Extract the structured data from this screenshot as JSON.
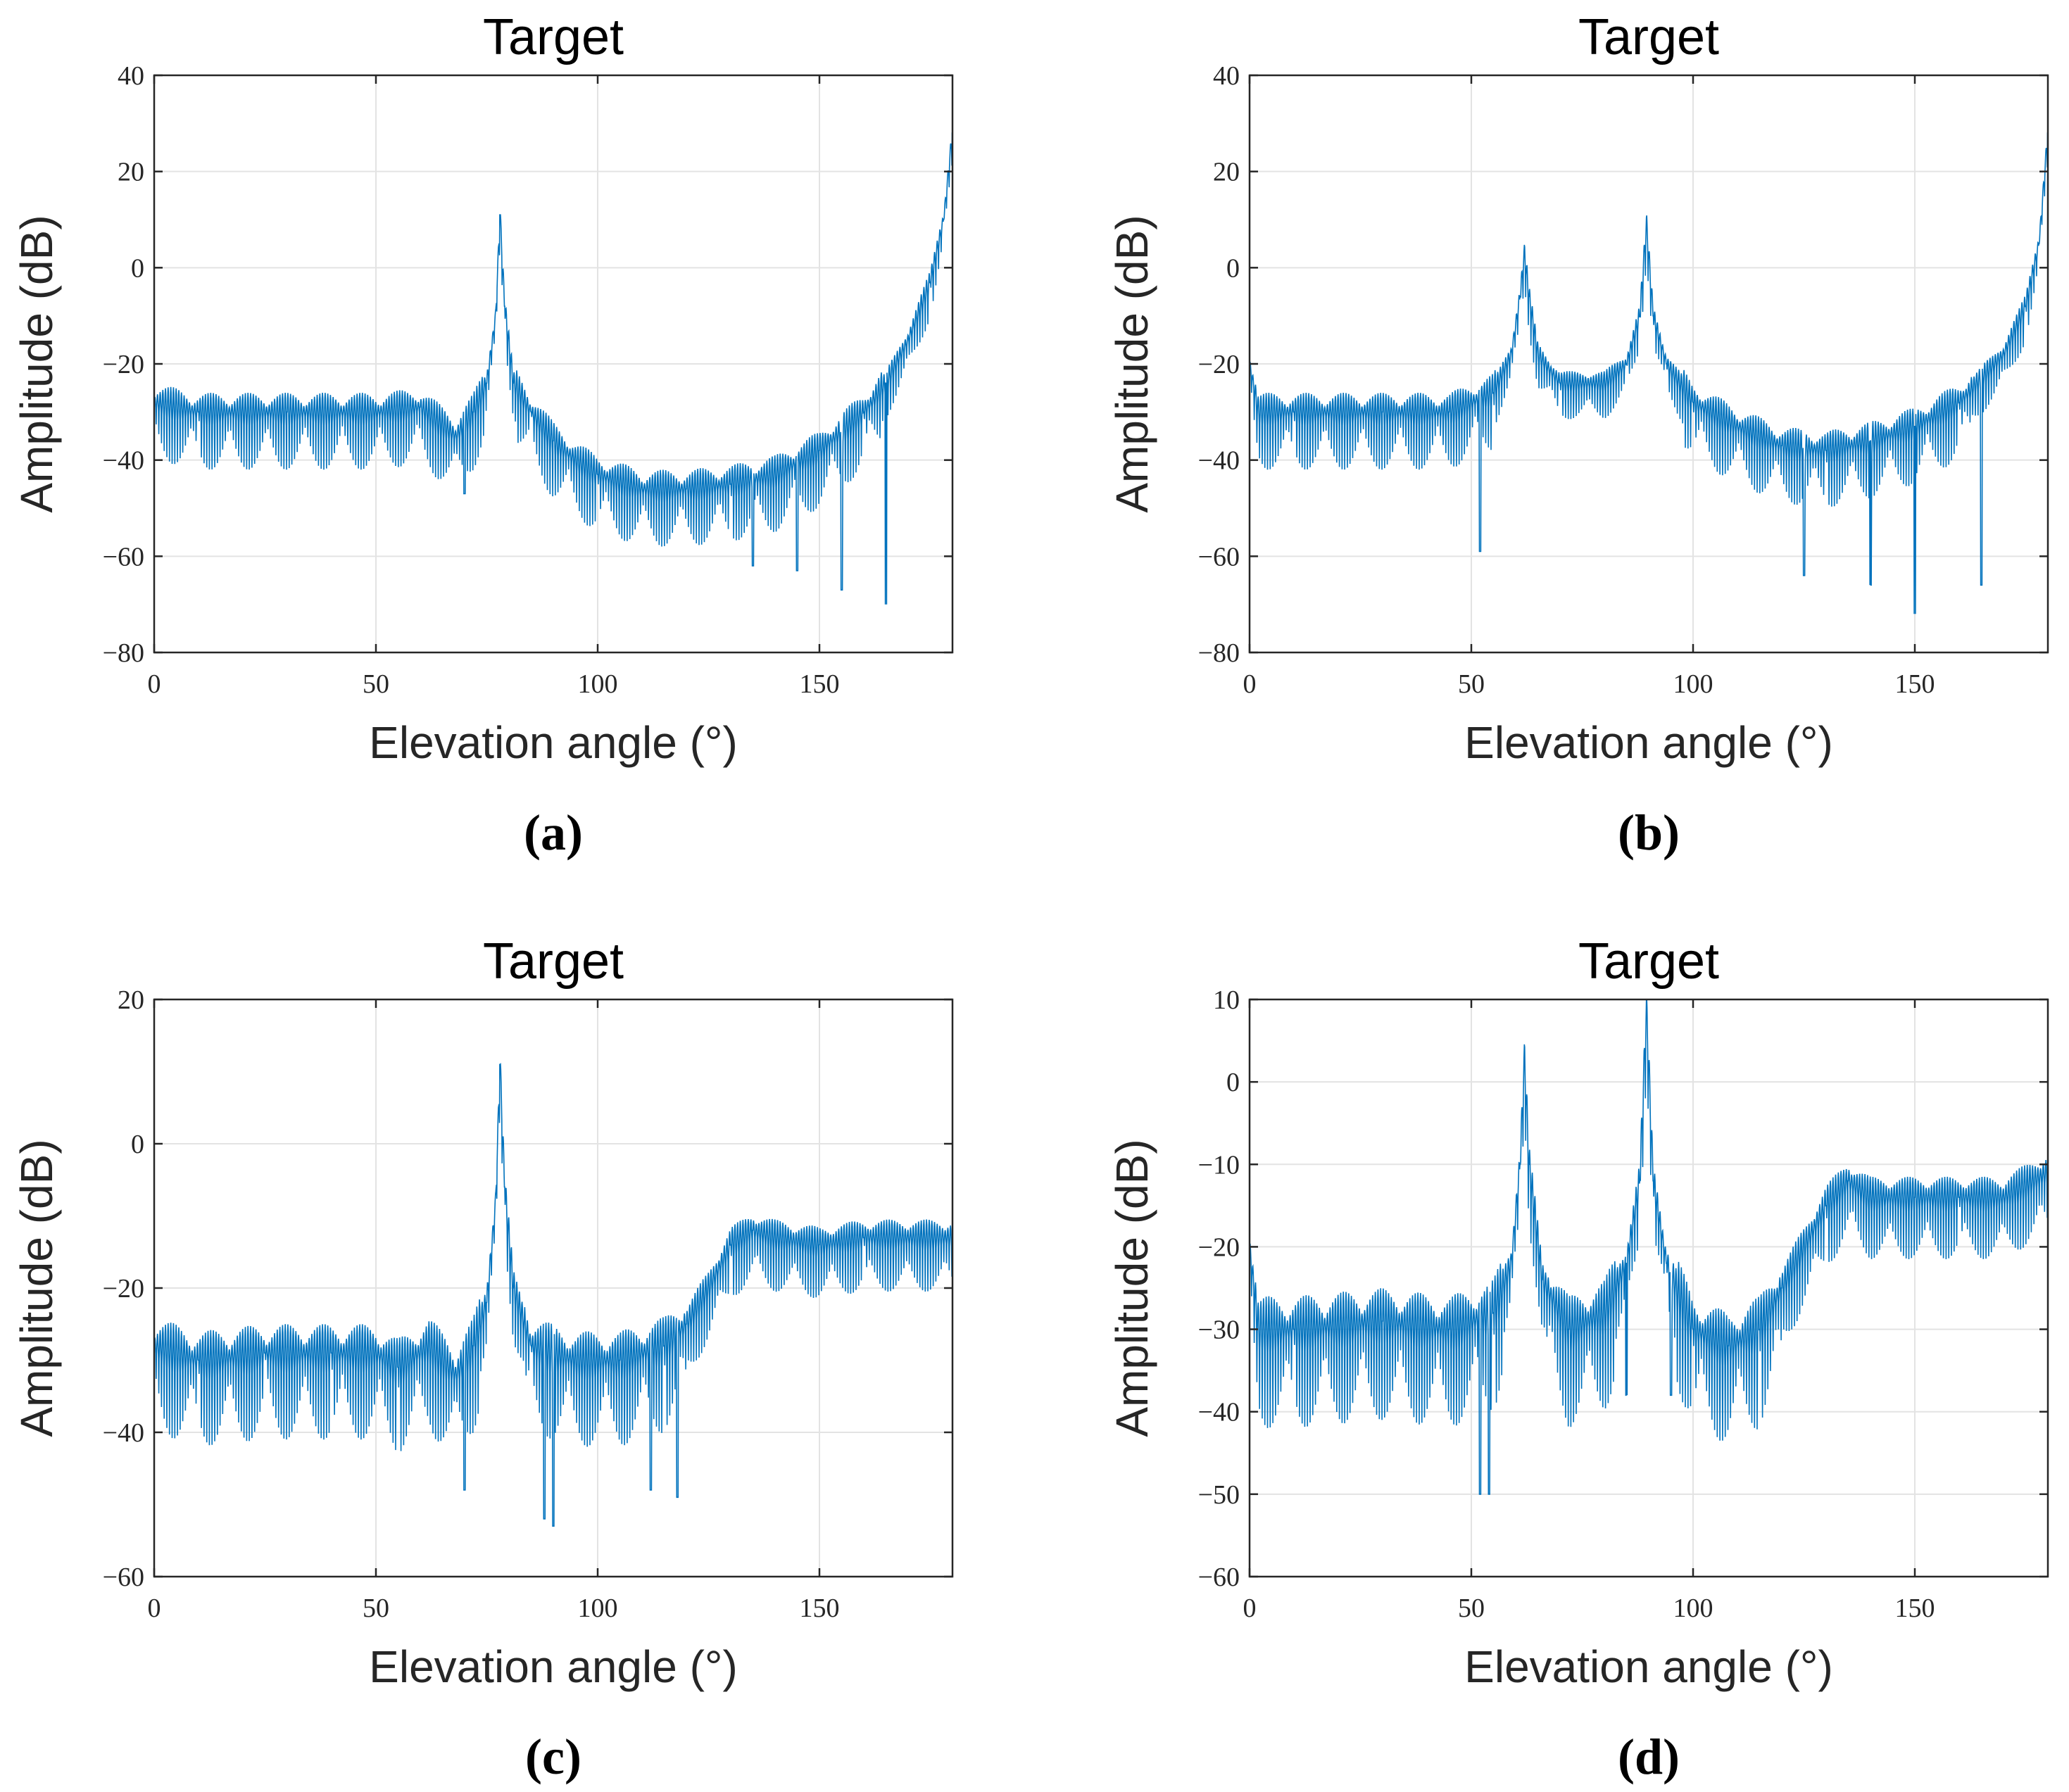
{
  "chart_data": [
    {
      "type": "line",
      "panel": "(a)",
      "title": "Target",
      "xlabel": "Elevation angle (°)",
      "ylabel": "Amplitude (dB)",
      "xlim": [
        0,
        180
      ],
      "ylim": [
        -80,
        40
      ],
      "xticks": [
        0,
        50,
        100,
        150
      ],
      "yticks": [
        -80,
        -60,
        -40,
        -20,
        0,
        20,
        40
      ],
      "grid": true,
      "color": "#0072BD",
      "series": [
        {
          "name": "Target",
          "keypoints": [
            [
              0,
              -28
            ],
            [
              10,
              -30
            ],
            [
              30,
              -30
            ],
            [
              50,
              -30
            ],
            [
              60,
              -29
            ],
            [
              68,
              -35
            ],
            [
              72,
              -30
            ],
            [
              75,
              -24
            ],
            [
              77,
              -10
            ],
            [
              78,
              11
            ],
            [
              79,
              -8
            ],
            [
              81,
              -24
            ],
            [
              85,
              -30
            ],
            [
              90,
              -36
            ],
            [
              95,
              -40
            ],
            [
              100,
              -43
            ],
            [
              110,
              -46
            ],
            [
              120,
              -46
            ],
            [
              130,
              -45
            ],
            [
              140,
              -43
            ],
            [
              150,
              -38
            ],
            [
              160,
              -30
            ],
            [
              165,
              -24
            ],
            [
              170,
              -15
            ],
            [
              175,
              -3
            ],
            [
              178,
              10
            ],
            [
              180,
              28
            ]
          ],
          "dips": [
            [
              70,
              -47
            ],
            [
              135,
              -62
            ],
            [
              145,
              -63
            ],
            [
              155,
              -67
            ],
            [
              165,
              -70
            ]
          ],
          "ripple_deg": 0.6
        }
      ]
    },
    {
      "type": "line",
      "panel": "(b)",
      "title": "Target",
      "xlabel": "Elevation angle (°)",
      "ylabel": "Amplitude (dB)",
      "xlim": [
        0,
        180
      ],
      "ylim": [
        -80,
        40
      ],
      "xticks": [
        0,
        50,
        100,
        150
      ],
      "yticks": [
        -80,
        -60,
        -40,
        -20,
        0,
        20,
        40
      ],
      "grid": true,
      "color": "#0072BD",
      "series": [
        {
          "name": "Target",
          "keypoints": [
            [
              0,
              -20
            ],
            [
              2,
              -30
            ],
            [
              10,
              -30
            ],
            [
              30,
              -30
            ],
            [
              45,
              -30
            ],
            [
              55,
              -26
            ],
            [
              59,
              -18
            ],
            [
              61,
              -6
            ],
            [
              62,
              3
            ],
            [
              63,
              -6
            ],
            [
              65,
              -18
            ],
            [
              70,
              -24
            ],
            [
              80,
              -24
            ],
            [
              85,
              -20
            ],
            [
              88,
              -10
            ],
            [
              89.5,
              9
            ],
            [
              91,
              -10
            ],
            [
              94,
              -20
            ],
            [
              100,
              -28
            ],
            [
              110,
              -33
            ],
            [
              120,
              -37
            ],
            [
              130,
              -38
            ],
            [
              140,
              -36
            ],
            [
              150,
              -33
            ],
            [
              160,
              -28
            ],
            [
              170,
              -18
            ],
            [
              175,
              -8
            ],
            [
              178,
              5
            ],
            [
              180,
              28
            ]
          ],
          "dips": [
            [
              52,
              -59
            ],
            [
              125,
              -64
            ],
            [
              140,
              -66
            ],
            [
              150,
              -72
            ],
            [
              165,
              -66
            ]
          ],
          "ripple_deg": 0.6
        }
      ]
    },
    {
      "type": "line",
      "panel": "(c)",
      "title": "Target",
      "xlabel": "Elevation angle (°)",
      "ylabel": "Amplitude (dB)",
      "xlim": [
        0,
        180
      ],
      "ylim": [
        -60,
        20
      ],
      "xticks": [
        0,
        50,
        100,
        150
      ],
      "yticks": [
        -60,
        -40,
        -20,
        0,
        20
      ],
      "grid": true,
      "color": "#0072BD",
      "series": [
        {
          "name": "Target",
          "keypoints": [
            [
              0,
              -28
            ],
            [
              10,
              -30
            ],
            [
              25,
              -29
            ],
            [
              40,
              -29
            ],
            [
              50,
              -29
            ],
            [
              55,
              -31
            ],
            [
              62,
              -28
            ],
            [
              68,
              -32
            ],
            [
              72,
              -28
            ],
            [
              75,
              -22
            ],
            [
              77,
              -8
            ],
            [
              78,
              11
            ],
            [
              79,
              -6
            ],
            [
              81,
              -20
            ],
            [
              85,
              -28
            ],
            [
              95,
              -30
            ],
            [
              105,
              -30
            ],
            [
              115,
              -28
            ],
            [
              120,
              -25
            ],
            [
              125,
              -20
            ],
            [
              130,
              -14
            ],
            [
              135,
              -12
            ],
            [
              140,
              -13
            ],
            [
              150,
              -14
            ],
            [
              160,
              -13
            ],
            [
              170,
              -13
            ],
            [
              180,
              -13
            ]
          ],
          "dips": [
            [
              70,
              -48
            ],
            [
              88,
              -52
            ],
            [
              90,
              -53
            ],
            [
              112,
              -48
            ],
            [
              118,
              -49
            ]
          ],
          "ripple_deg": 0.6
        }
      ]
    },
    {
      "type": "line",
      "panel": "(d)",
      "title": "Target",
      "xlabel": "Elevation angle (°)",
      "ylabel": "Amplitude (dB)",
      "xlim": [
        0,
        180
      ],
      "ylim": [
        -60,
        10
      ],
      "xticks": [
        0,
        50,
        100,
        150
      ],
      "yticks": [
        -60,
        -50,
        -40,
        -30,
        -20,
        -10,
        0,
        10
      ],
      "grid": true,
      "color": "#0072BD",
      "series": [
        {
          "name": "Target",
          "keypoints": [
            [
              0,
              -20
            ],
            [
              2,
              -30
            ],
            [
              10,
              -30
            ],
            [
              30,
              -29
            ],
            [
              45,
              -30
            ],
            [
              55,
              -28
            ],
            [
              59,
              -22
            ],
            [
              61,
              -10
            ],
            [
              62,
              3
            ],
            [
              63,
              -10
            ],
            [
              66,
              -24
            ],
            [
              72,
              -30
            ],
            [
              80,
              -28
            ],
            [
              85,
              -22
            ],
            [
              88,
              -12
            ],
            [
              89.5,
              9
            ],
            [
              91,
              -12
            ],
            [
              94,
              -22
            ],
            [
              100,
              -30
            ],
            [
              108,
              -32
            ],
            [
              115,
              -30
            ],
            [
              120,
              -25
            ],
            [
              125,
              -20
            ],
            [
              130,
              -15
            ],
            [
              135,
              -12
            ],
            [
              140,
              -14
            ],
            [
              150,
              -14
            ],
            [
              160,
              -14
            ],
            [
              170,
              -14
            ],
            [
              180,
              -11
            ]
          ],
          "dips": [
            [
              52,
              -50
            ],
            [
              54,
              -50
            ],
            [
              85,
              -38
            ],
            [
              95,
              -38
            ]
          ],
          "ripple_deg": 0.6
        }
      ]
    }
  ]
}
